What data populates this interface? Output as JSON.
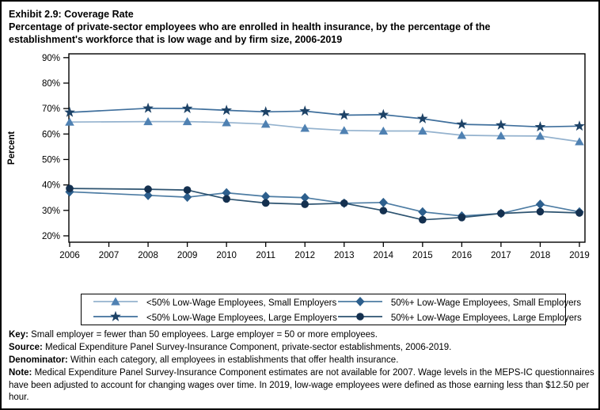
{
  "title": {
    "exhibit": "Exhibit 2.9: Coverage Rate",
    "subtitle_line1": "Percentage of private-sector employees who are enrolled in health insurance, by the percentage of the",
    "subtitle_line2": "establishment's workforce that is low wage and by firm size, 2006-2019"
  },
  "chart_data": {
    "type": "line",
    "title": "Exhibit 2.9: Coverage Rate",
    "subtitle": "Percentage of private-sector employees who are enrolled in health insurance, by the percentage of the establishment's workforce that is low wage and by firm size, 2006-2019",
    "xlabel": "",
    "ylabel": "Percent",
    "ylim": [
      17.5,
      91.5
    ],
    "yticks": [
      20,
      30,
      40,
      50,
      60,
      70,
      80,
      90
    ],
    "ytick_suffix": "%",
    "xlim": [
      2006,
      2019
    ],
    "xticks": [
      2006,
      2007,
      2008,
      2009,
      2010,
      2011,
      2012,
      2013,
      2014,
      2015,
      2016,
      2017,
      2018,
      2019
    ],
    "x": [
      2006,
      2008,
      2009,
      2010,
      2011,
      2012,
      2013,
      2014,
      2015,
      2016,
      2017,
      2018,
      2019
    ],
    "x_note": "no data point for 2007",
    "grid": false,
    "legend_position": "bottom",
    "legend_order": [
      0,
      2,
      1,
      3
    ],
    "series": [
      {
        "name": "<50% Low-Wage Employees, Small Employers",
        "marker": "triangle",
        "marker_color": "#4f81b2",
        "line_color": "#94b2ce",
        "values": [
          64.7,
          64.9,
          64.9,
          64.5,
          63.9,
          62.3,
          61.4,
          61.2,
          61.2,
          59.5,
          59.3,
          59.2,
          57.0
        ]
      },
      {
        "name": "<50% Low-Wage Employees, Large Employers",
        "marker": "star",
        "marker_color": "#1d4266",
        "line_color": "#3f6f9c",
        "values": [
          68.5,
          70.1,
          70.0,
          69.3,
          68.7,
          69.0,
          67.4,
          67.6,
          66.0,
          63.8,
          63.5,
          62.8,
          63.1
        ]
      },
      {
        "name": "50%+ Low-Wage Employees, Small Employers",
        "marker": "diamond",
        "marker_color": "#2d5f8d",
        "line_color": "#4d7ca3",
        "values": [
          37.3,
          35.9,
          35.2,
          36.9,
          35.5,
          35.0,
          32.8,
          33.1,
          29.4,
          27.8,
          28.8,
          32.4,
          29.4
        ]
      },
      {
        "name": "50%+ Low-Wage Employees, Large Employers",
        "marker": "circle",
        "marker_color": "#14304f",
        "line_color": "#2d5370",
        "values": [
          38.6,
          38.3,
          38.0,
          34.5,
          32.9,
          32.4,
          32.8,
          29.9,
          26.3,
          27.2,
          28.8,
          29.5,
          29.0
        ]
      }
    ]
  },
  "footer": {
    "key_label": "Key:",
    "key_text": " Small employer = fewer than 50 employees. Large employer = 50 or more employees.",
    "source_label": "Source:",
    "source_text": " Medical Expenditure Panel Survey-Insurance Component, private-sector establishments, 2006-2019.",
    "denominator_label": "Denominator:",
    "denominator_text": " Within each category, all employees in establishments that offer health insurance.",
    "note_label": "Note:",
    "note_text": " Medical Expenditure Panel Survey-Insurance Component estimates are not available for 2007. Wage levels in the MEPS-IC questionnaires have been adjusted to account for changing wages over time. In 2019, low-wage employees were defined as those earning less than $12.50 per hour."
  }
}
